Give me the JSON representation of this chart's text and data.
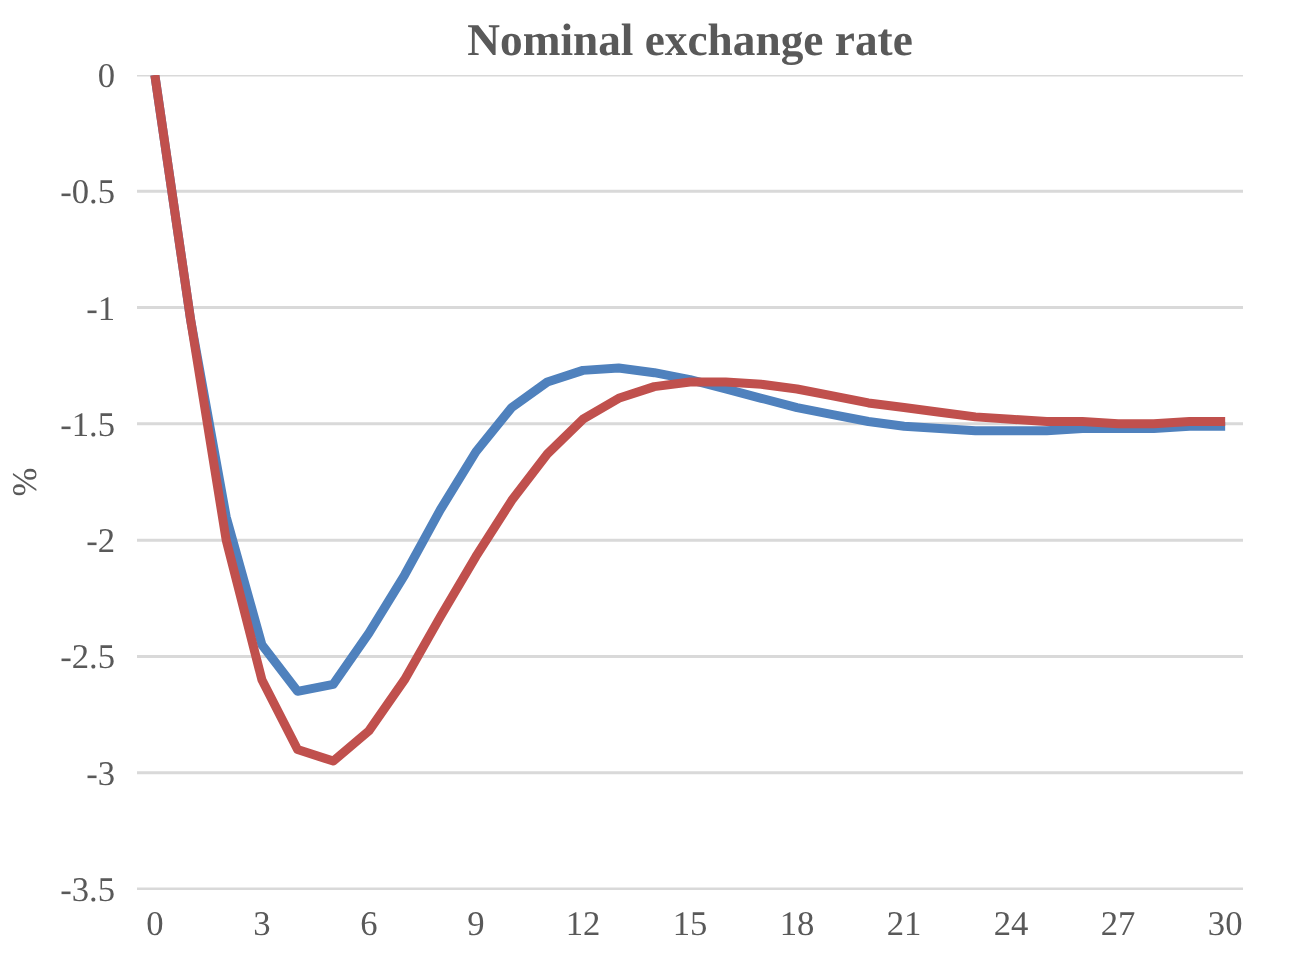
{
  "chart_data": {
    "type": "line",
    "title": "Nominal exchange rate",
    "ylabel": "%",
    "x": [
      0,
      1,
      2,
      3,
      4,
      5,
      6,
      7,
      8,
      9,
      10,
      11,
      12,
      13,
      14,
      15,
      16,
      17,
      18,
      19,
      20,
      21,
      22,
      23,
      24,
      25,
      26,
      27,
      28,
      29,
      30
    ],
    "series": [
      {
        "color": "#4f81bd",
        "values": [
          0,
          -1.05,
          -1.9,
          -2.45,
          -2.65,
          -2.62,
          -2.4,
          -2.15,
          -1.87,
          -1.62,
          -1.43,
          -1.32,
          -1.27,
          -1.26,
          -1.28,
          -1.31,
          -1.35,
          -1.39,
          -1.43,
          -1.46,
          -1.49,
          -1.51,
          -1.52,
          -1.53,
          -1.53,
          -1.53,
          -1.52,
          -1.52,
          -1.52,
          -1.51,
          -1.51
        ]
      },
      {
        "color": "#c0504d",
        "values": [
          0,
          -1.05,
          -2.0,
          -2.6,
          -2.9,
          -2.95,
          -2.82,
          -2.6,
          -2.33,
          -2.07,
          -1.83,
          -1.63,
          -1.48,
          -1.39,
          -1.34,
          -1.32,
          -1.32,
          -1.33,
          -1.35,
          -1.38,
          -1.41,
          -1.43,
          -1.45,
          -1.47,
          -1.48,
          -1.49,
          -1.49,
          -1.5,
          -1.5,
          -1.49,
          -1.49
        ]
      }
    ],
    "xlim": [
      -0.5,
      30.5
    ],
    "ylim": [
      -3.5,
      0
    ],
    "xticks": [
      0,
      3,
      6,
      9,
      12,
      15,
      18,
      21,
      24,
      27,
      30
    ],
    "yticks": [
      0,
      -0.5,
      -1,
      -1.5,
      -2,
      -2.5,
      -3,
      -3.5
    ],
    "grid": "y"
  }
}
